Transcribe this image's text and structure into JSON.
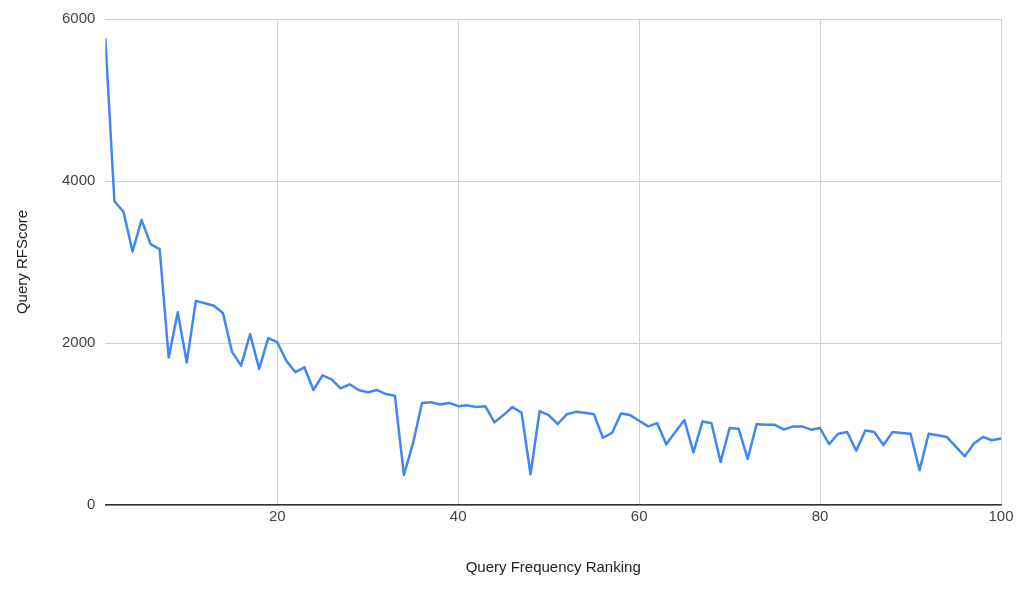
{
  "chart_data": {
    "type": "line",
    "xlabel": "Query Frequency Ranking",
    "ylabel": "Query RFScore",
    "x": [
      1,
      2,
      3,
      4,
      5,
      6,
      7,
      8,
      9,
      10,
      11,
      12,
      13,
      14,
      15,
      16,
      17,
      18,
      19,
      20,
      21,
      22,
      23,
      24,
      25,
      26,
      27,
      28,
      29,
      30,
      31,
      32,
      33,
      34,
      35,
      36,
      37,
      38,
      39,
      40,
      41,
      42,
      43,
      44,
      45,
      46,
      47,
      48,
      49,
      50,
      51,
      52,
      53,
      54,
      55,
      56,
      57,
      58,
      59,
      60,
      61,
      62,
      63,
      64,
      65,
      66,
      67,
      68,
      69,
      70,
      71,
      72,
      73,
      74,
      75,
      76,
      77,
      78,
      79,
      80,
      81,
      82,
      83,
      84,
      85,
      86,
      87,
      88,
      89,
      90,
      91,
      92,
      93,
      94,
      95,
      96,
      97,
      98,
      99,
      100
    ],
    "series": [
      {
        "color": "#4285f4",
        "values": [
          5750,
          3750,
          3620,
          3130,
          3520,
          3220,
          3160,
          1820,
          2380,
          1760,
          2520,
          2490,
          2460,
          2370,
          1890,
          1720,
          2110,
          1680,
          2060,
          2010,
          1780,
          1640,
          1700,
          1420,
          1600,
          1550,
          1440,
          1490,
          1420,
          1390,
          1420,
          1370,
          1350,
          370,
          760,
          1260,
          1270,
          1240,
          1260,
          1220,
          1230,
          1210,
          1220,
          1020,
          1110,
          1210,
          1140,
          380,
          1160,
          1110,
          1000,
          1120,
          1150,
          1140,
          1120,
          830,
          890,
          1130,
          1110,
          1040,
          970,
          1010,
          750,
          900,
          1050,
          650,
          1030,
          1010,
          530,
          950,
          940,
          570,
          1000,
          990,
          990,
          930,
          970,
          970,
          930,
          950,
          750,
          880,
          900,
          670,
          920,
          900,
          740,
          900,
          890,
          880,
          430,
          880,
          860,
          840,
          720,
          600,
          760,
          840,
          800,
          820
        ]
      }
    ],
    "xlim": [
      1,
      100
    ],
    "xticks": [
      20,
      40,
      60,
      80,
      100
    ],
    "ylim": [
      0,
      6000
    ],
    "yticks": [
      0,
      2000,
      4000,
      6000
    ],
    "grid": true,
    "legend": false,
    "marker": "none",
    "line_style": "solid"
  }
}
